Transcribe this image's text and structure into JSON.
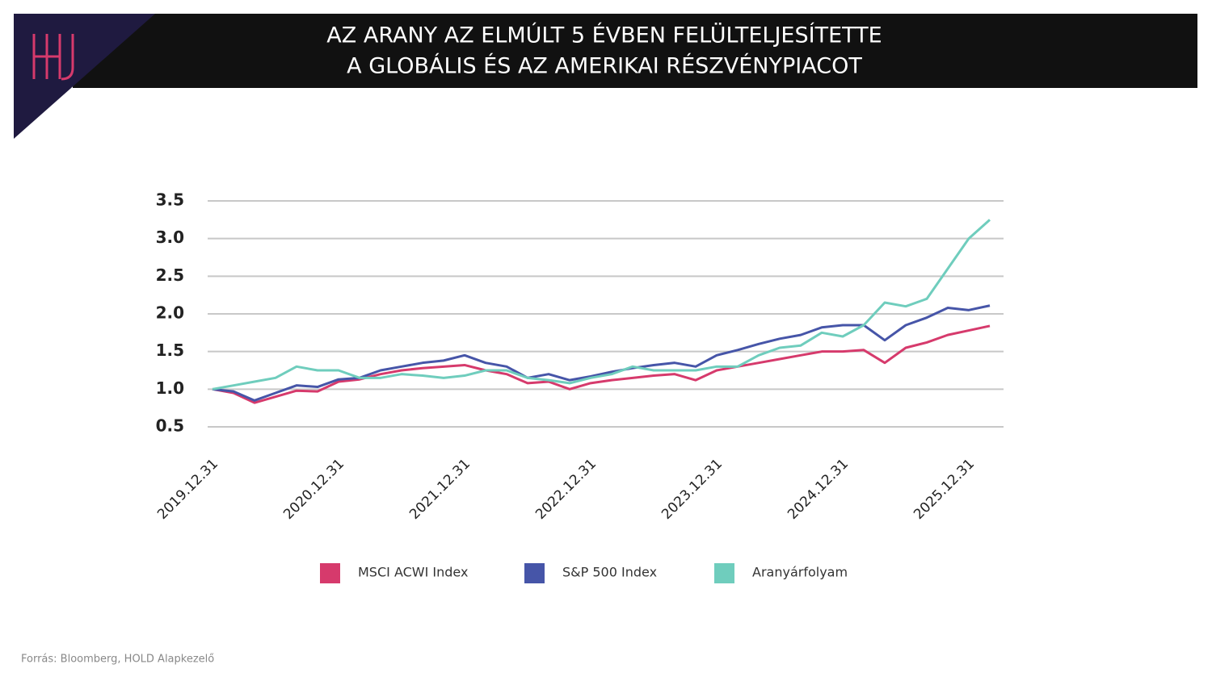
{
  "chart_data": {
    "type": "line",
    "title": [
      "AZ ARANY AZ ELMÚLT 5 ÉVBEN FELÜLTELJESÍTETTE",
      "A GLOBÁLIS ÉS AZ AMERIKAI RÉSZVÉNYPIACOT"
    ],
    "categories": [
      "2019.12.31",
      null,
      null,
      null,
      null,
      null,
      "2020.12.31",
      null,
      null,
      null,
      null,
      null,
      "2021.12.31",
      null,
      null,
      null,
      null,
      null,
      "2022.12.31",
      null,
      null,
      null,
      null,
      null,
      "2023.12.31",
      null,
      null,
      null,
      null,
      null,
      "2024.12.31",
      null,
      null,
      null,
      null,
      null,
      "2025.12.31",
      null
    ],
    "series": [
      {
        "name": "MSCI ACWI Index",
        "color": "#d63a6c",
        "values": [
          1.0,
          0.95,
          0.82,
          0.9,
          0.98,
          0.97,
          1.1,
          1.13,
          1.2,
          1.25,
          1.28,
          1.3,
          1.32,
          1.25,
          1.2,
          1.08,
          1.1,
          1.0,
          1.08,
          1.12,
          1.15,
          1.18,
          1.2,
          1.12,
          1.25,
          1.3,
          1.35,
          1.4,
          1.45,
          1.5,
          1.5,
          1.52,
          1.35,
          1.55,
          1.62,
          1.72,
          1.78,
          1.84
        ]
      },
      {
        "name": "S&P 500 Index",
        "color": "#4655a8",
        "values": [
          1.0,
          0.97,
          0.85,
          0.95,
          1.05,
          1.03,
          1.13,
          1.15,
          1.25,
          1.3,
          1.35,
          1.38,
          1.45,
          1.35,
          1.3,
          1.15,
          1.2,
          1.12,
          1.17,
          1.23,
          1.28,
          1.32,
          1.35,
          1.3,
          1.45,
          1.52,
          1.6,
          1.67,
          1.72,
          1.82,
          1.85,
          1.85,
          1.65,
          1.85,
          1.95,
          2.08,
          2.05,
          2.11
        ]
      },
      {
        "name": "Aranyárfolyam",
        "color": "#6fcdbd",
        "values": [
          1.0,
          1.05,
          1.1,
          1.15,
          1.3,
          1.25,
          1.25,
          1.15,
          1.15,
          1.2,
          1.18,
          1.15,
          1.18,
          1.25,
          1.25,
          1.15,
          1.12,
          1.08,
          1.15,
          1.2,
          1.3,
          1.25,
          1.25,
          1.25,
          1.3,
          1.3,
          1.45,
          1.55,
          1.58,
          1.75,
          1.7,
          1.85,
          2.15,
          2.1,
          2.2,
          2.6,
          3.0,
          3.25
        ]
      }
    ],
    "ylim": [
      0.5,
      3.5
    ],
    "yticks": [
      0.5,
      {
        "value": 1,
        "label": "1.0"
      },
      1.5,
      {
        "value": 2,
        "label": "2.0"
      },
      2.5,
      {
        "value": 3,
        "label": "3.0"
      },
      3.5
    ],
    "grid": true,
    "source": "Forrás: Bloomberg, HOLD Alapkezelő"
  }
}
